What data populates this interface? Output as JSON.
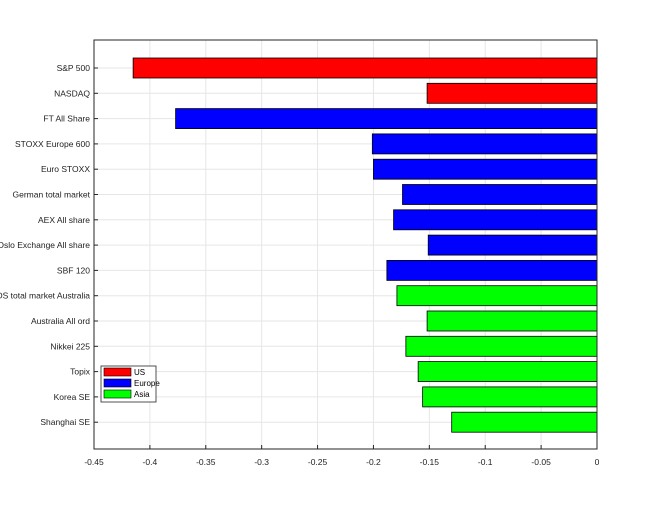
{
  "chart_data": {
    "type": "bar",
    "orientation": "horizontal",
    "categories": [
      "S&P 500",
      "NASDAQ",
      "FT All Share",
      "STOXX Europe 600",
      "Euro STOXX",
      "German total market",
      "AEX All share",
      "Oslo Exchange All share",
      "SBF 120",
      "DS total market Australia",
      "Australia All ord",
      "Nikkei 225",
      "Topix",
      "Korea SE",
      "Shanghai SE"
    ],
    "values": [
      -0.415,
      -0.152,
      -0.377,
      -0.201,
      -0.2,
      -0.174,
      -0.182,
      -0.151,
      -0.188,
      -0.179,
      -0.152,
      -0.171,
      -0.16,
      -0.156,
      -0.13
    ],
    "groups": [
      "US",
      "US",
      "Europe",
      "Europe",
      "Europe",
      "Europe",
      "Europe",
      "Europe",
      "Europe",
      "Asia",
      "Asia",
      "Asia",
      "Asia",
      "Asia",
      "Asia"
    ],
    "legend": [
      {
        "name": "US",
        "color": "#ff0000"
      },
      {
        "name": "Europe",
        "color": "#0000ff"
      },
      {
        "name": "Asia",
        "color": "#00ff00"
      }
    ],
    "legend_position": "bottom-left",
    "xlim": [
      -0.45,
      0
    ],
    "xticks": [
      "-0.45",
      "-0.4",
      "-0.35",
      "-0.3",
      "-0.25",
      "-0.2",
      "-0.15",
      "-0.1",
      "-0.05",
      "0"
    ],
    "grid": true,
    "title": "",
    "xlabel": "",
    "ylabel": ""
  }
}
